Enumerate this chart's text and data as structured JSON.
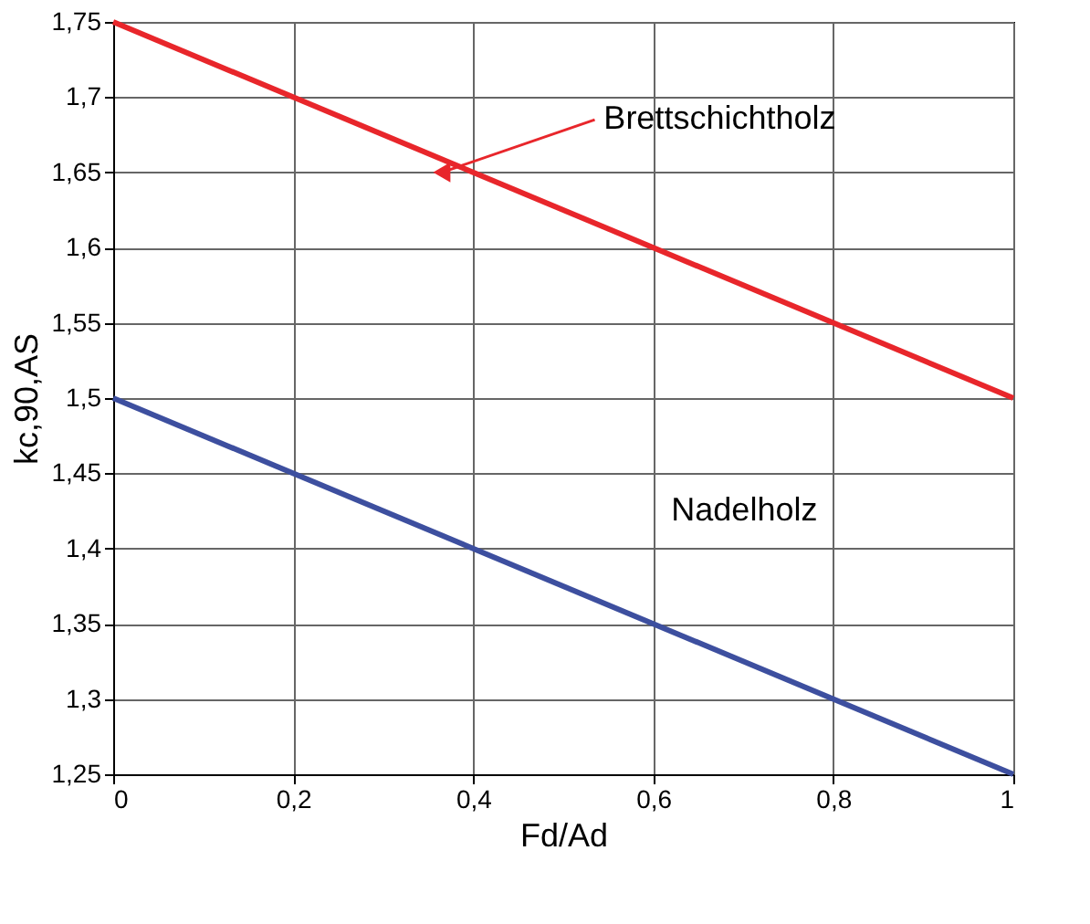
{
  "chart_data": {
    "type": "line",
    "xlabel": "Fd/Ad",
    "ylabel": "kc,90,AS",
    "x": [
      0,
      1
    ],
    "series": [
      {
        "name": "Brettschichtholz",
        "color": "#e8262b",
        "values": [
          1.75,
          1.5
        ]
      },
      {
        "name": "Nadelholz",
        "color": "#3d4f9f",
        "values": [
          1.5,
          1.25
        ]
      }
    ],
    "xlim": [
      0,
      1
    ],
    "xticks": [
      0,
      {
        "value": 0.2,
        "label": "0,2"
      },
      {
        "value": 0.4,
        "label": "0,4"
      },
      {
        "value": 0.6,
        "label": "0,6"
      },
      {
        "value": 0.8,
        "label": "0,8"
      },
      1
    ],
    "ylim": [
      1.25,
      1.75
    ],
    "yticks": [
      {
        "value": 1.25,
        "label": "1,25"
      },
      {
        "value": 1.3,
        "label": "1,3"
      },
      {
        "value": 1.35,
        "label": "1,35"
      },
      {
        "value": 1.4,
        "label": "1,4"
      },
      {
        "value": 1.45,
        "label": "1,45"
      },
      {
        "value": 1.5,
        "label": "1,5"
      },
      {
        "value": 1.55,
        "label": "1,55"
      },
      {
        "value": 1.6,
        "label": "1,6"
      },
      {
        "value": 1.65,
        "label": "1,65"
      },
      {
        "value": 1.7,
        "label": "1,7"
      },
      {
        "value": 1.75,
        "label": "1,75"
      }
    ],
    "grid": true,
    "marker": "none",
    "line_style": "solid"
  }
}
